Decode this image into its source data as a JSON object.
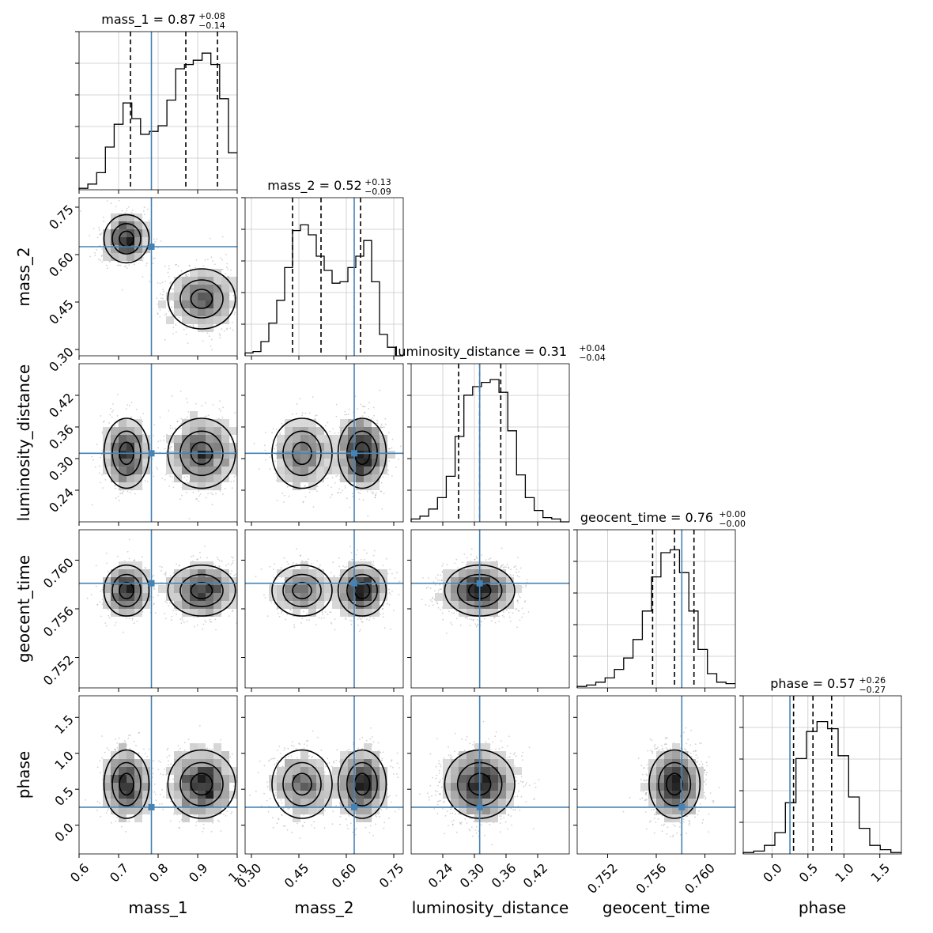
{
  "chart_data": {
    "type": "corner",
    "parameters": [
      {
        "name": "mass_1",
        "label": "mass_1",
        "range": [
          0.6,
          1.0
        ],
        "ticks": [
          0.6,
          0.7,
          0.8,
          0.9,
          1.0
        ],
        "tick_labels": [
          "0.6",
          "0.7",
          "0.8",
          "0.9",
          "1.0"
        ],
        "truth": 0.783,
        "title": {
          "prefix": "mass_1 = 0.87",
          "sup": "+0.08",
          "sub": "−0.14"
        },
        "quantiles": [
          0.73,
          0.87,
          0.95
        ],
        "histogram": [
          0.01,
          0.04,
          0.12,
          0.3,
          0.46,
          0.61,
          0.5,
          0.39,
          0.41,
          0.45,
          0.63,
          0.85,
          0.88,
          0.91,
          0.96,
          0.88,
          0.64,
          0.26
        ],
        "modes": [
          {
            "mean": 0.72,
            "sd": 0.03
          },
          {
            "mean": 0.91,
            "sd": 0.045
          }
        ]
      },
      {
        "name": "mass_2",
        "label": "mass_2",
        "range": [
          0.28,
          0.78
        ],
        "ticks": [
          0.3,
          0.45,
          0.6,
          0.75
        ],
        "tick_labels": [
          "0.30",
          "0.45",
          "0.60",
          "0.75"
        ],
        "truth": 0.625,
        "title": {
          "prefix": "mass_2 = 0.52",
          "sup": "+0.13",
          "sub": "−0.09"
        },
        "quantiles": [
          0.43,
          0.52,
          0.645
        ],
        "histogram": [
          0.02,
          0.03,
          0.1,
          0.23,
          0.39,
          0.62,
          0.88,
          0.92,
          0.85,
          0.7,
          0.6,
          0.51,
          0.52,
          0.62,
          0.7,
          0.81,
          0.52,
          0.15,
          0.06,
          0.0
        ],
        "modes": [
          {
            "mean": 0.46,
            "sd": 0.05
          },
          {
            "mean": 0.65,
            "sd": 0.04
          }
        ]
      },
      {
        "name": "luminosity_distance",
        "label": "luminosity_distance",
        "range": [
          0.18,
          0.48
        ],
        "ticks": [
          0.24,
          0.3,
          0.36,
          0.42
        ],
        "tick_labels": [
          "0.24",
          "0.30",
          "0.36",
          "0.42"
        ],
        "truth": 0.31,
        "title": {
          "prefix": "luminosity_distance = 0.31",
          "sup": "+0.04",
          "sub": "−0.04"
        },
        "quantiles": [
          0.27,
          0.31,
          0.35
        ],
        "histogram": [
          0.02,
          0.04,
          0.09,
          0.17,
          0.32,
          0.6,
          0.89,
          0.95,
          0.98,
          1.0,
          0.91,
          0.64,
          0.33,
          0.17,
          0.08,
          0.03,
          0.02,
          0.0
        ],
        "modes": [
          {
            "mean": 0.31,
            "sd": 0.035
          }
        ]
      },
      {
        "name": "geocent_time",
        "label": "geocent_time",
        "range": [
          0.7495,
          0.7625
        ],
        "ticks": [
          0.752,
          0.756,
          0.76
        ],
        "tick_labels": [
          "0.752",
          "0.756",
          "0.760"
        ],
        "truth": 0.7581,
        "title": {
          "prefix": "geocent_time = 0.76",
          "sup": "+0.00",
          "sub": "−0.00"
        },
        "quantiles": [
          0.7557,
          0.7575,
          0.7591
        ],
        "histogram": [
          0.01,
          0.02,
          0.04,
          0.07,
          0.13,
          0.21,
          0.34,
          0.54,
          0.78,
          0.95,
          0.97,
          0.81,
          0.54,
          0.27,
          0.1,
          0.04,
          0.03
        ],
        "modes": [
          {
            "mean": 0.7575,
            "sd": 0.0011
          }
        ]
      },
      {
        "name": "phase",
        "label": "phase",
        "range": [
          -0.4,
          1.8
        ],
        "ticks": [
          0.0,
          0.5,
          1.0,
          1.5
        ],
        "tick_labels": [
          "0.0",
          "0.5",
          "1.0",
          "1.5"
        ],
        "truth": 0.25,
        "title": {
          "prefix": "phase = 0.57",
          "sup": "+0.26",
          "sub": "−0.27"
        },
        "quantiles": [
          0.3,
          0.57,
          0.83
        ],
        "histogram": [
          0.01,
          0.02,
          0.06,
          0.15,
          0.36,
          0.67,
          0.86,
          0.93,
          0.88,
          0.69,
          0.4,
          0.18,
          0.06,
          0.03,
          0.01
        ],
        "modes": [
          {
            "mean": 0.57,
            "sd": 0.25
          }
        ]
      }
    ],
    "row_tick_labels": {
      "mass_2": [
        "0.30",
        "0.45",
        "0.60",
        "0.75"
      ],
      "luminosity_distance": [
        "0.24",
        "0.30",
        "0.36",
        "0.42"
      ],
      "geocent_time": [
        "0.752",
        "0.756",
        "0.760"
      ],
      "phase": [
        "0.0",
        "0.5",
        "1.0",
        "1.5"
      ]
    },
    "truth_color": "#4682b4",
    "contour_color": "#000000",
    "quantile_line_style": "dashed",
    "grid": true
  }
}
